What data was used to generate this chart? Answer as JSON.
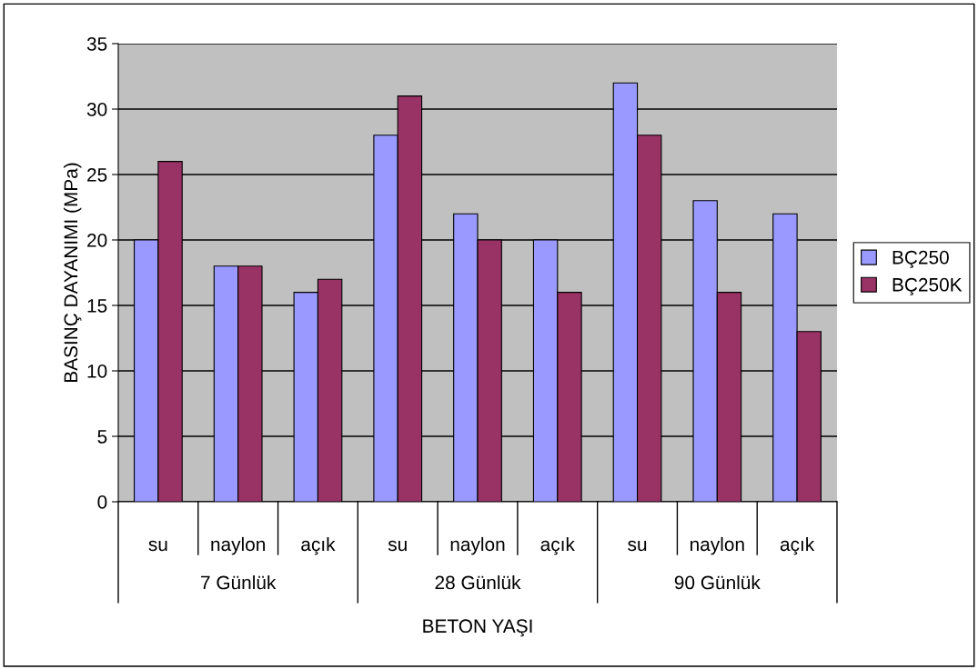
{
  "chart_data": {
    "type": "bar",
    "ylabel": "BASINÇ DAYANIMI (MPa)",
    "xlabel": "BETON YAŞI",
    "categories": [
      "su",
      "naylon",
      "açık",
      "su",
      "naylon",
      "açık",
      "su",
      "naylon",
      "açık"
    ],
    "annotations": [
      "7 Günlük",
      "28 Günlük",
      "90 Günlük"
    ],
    "series": [
      {
        "name": "BÇ250",
        "color": "#9999ff",
        "values": [
          20,
          18,
          16,
          28,
          22,
          20,
          32,
          23,
          22
        ]
      },
      {
        "name": "BÇ250K",
        "color": "#993366",
        "values": [
          26,
          18,
          17,
          31,
          20,
          16,
          28,
          16,
          13
        ]
      }
    ],
    "ylim": [
      0,
      35
    ],
    "yticks": [
      0,
      5,
      10,
      15,
      20,
      25,
      30,
      35
    ],
    "grid": "y",
    "legend": "right"
  }
}
